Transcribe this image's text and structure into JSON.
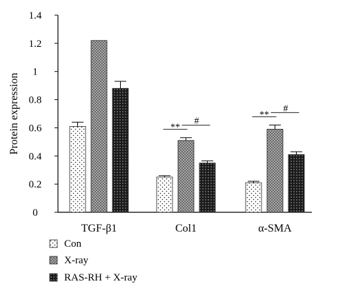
{
  "chart_data": {
    "type": "bar",
    "ylabel": "Protein expression",
    "ylim": [
      0,
      1.4
    ],
    "y_ticks": [
      "0",
      "0.2",
      "0.4",
      "0.6",
      "0.8",
      "1",
      "1.2",
      "1.4"
    ],
    "categories": [
      "TGF-β1",
      "Col1",
      "α-SMA"
    ],
    "series": [
      {
        "name": "Con",
        "values": [
          0.61,
          0.25,
          0.21
        ],
        "errors": [
          0.03,
          0.01,
          0.01
        ],
        "pattern": "dots"
      },
      {
        "name": "X-ray",
        "values": [
          1.22,
          0.51,
          0.59
        ],
        "errors": [
          0.0,
          0.02,
          0.03
        ],
        "pattern": "crosshatch"
      },
      {
        "name": "RAS-RH + X-ray",
        "values": [
          0.88,
          0.35,
          0.41
        ],
        "errors": [
          0.05,
          0.015,
          0.02
        ],
        "pattern": "dense"
      }
    ],
    "annotations": [
      {
        "category": "Col1",
        "stars": "**",
        "hash": "#"
      },
      {
        "category": "α-SMA",
        "stars": "**",
        "hash": "#"
      }
    ],
    "legend_position": "bottom-left",
    "grid": false
  }
}
